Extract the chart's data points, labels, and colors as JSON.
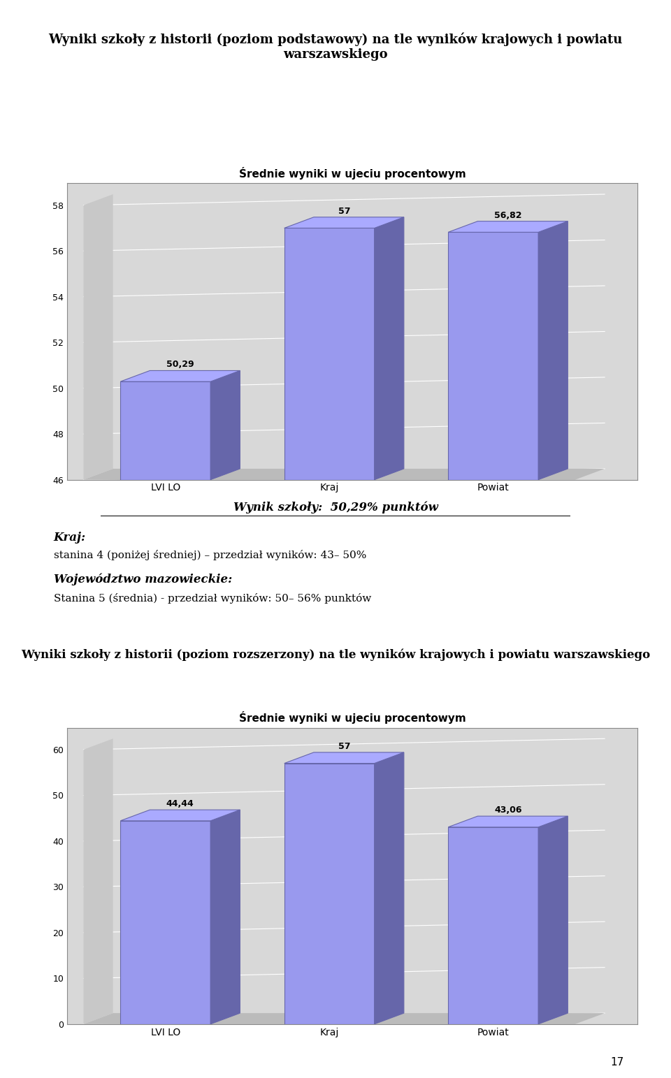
{
  "title1": "Wyniki szkoły z historii (poziom podstawowy) na tle wyników krajowych i powiatu warszawskiego",
  "chart1_title": "Średnie wyniki w ujeciu procentowym",
  "chart1_categories": [
    "LVI LO",
    "Kraj",
    "Powiat"
  ],
  "chart1_values": [
    50.29,
    57.0,
    56.82
  ],
  "chart1_ylim": [
    46,
    58
  ],
  "chart1_yticks": [
    46,
    48,
    50,
    52,
    54,
    56,
    58
  ],
  "chart1_labels": [
    "50,29",
    "57",
    "56,82"
  ],
  "wynik_szkoly1": "Wynik szkoły:  50,29% punktów",
  "kraj_header": "Kraj:",
  "kraj_text": "stanina 4 (poniżej średniej) – przedział wyników: 43– 50%",
  "woj_header": "Województwo mazowieckie:",
  "woj_text": "Stanina 5 (średnia) - przedział wyników: 50– 56% punktów",
  "title2": "Wyniki szkoły z historii (poziom rozszerzony) na tle wyników krajowych i powiatu warszawskiego",
  "chart2_title": "Średnie wyniki w ujeciu procentowym",
  "chart2_categories": [
    "LVI LO",
    "Kraj",
    "Powiat"
  ],
  "chart2_values": [
    44.44,
    57.0,
    43.06
  ],
  "chart2_ylim": [
    0,
    60
  ],
  "chart2_yticks": [
    0,
    10,
    20,
    30,
    40,
    50,
    60
  ],
  "chart2_labels": [
    "44,44",
    "57",
    "43,06"
  ],
  "bar_face_color": "#9999EE",
  "bar_side_color": "#6666AA",
  "bar_top_color": "#AAAAFF",
  "chart_bg_color": "#CCCCCC",
  "chart_back_color": "#D8D8D8",
  "chart_floor_color": "#BBBBBB",
  "chart_border_color": "#000000",
  "page_bg_color": "#FFFFFF",
  "page_number": "17"
}
